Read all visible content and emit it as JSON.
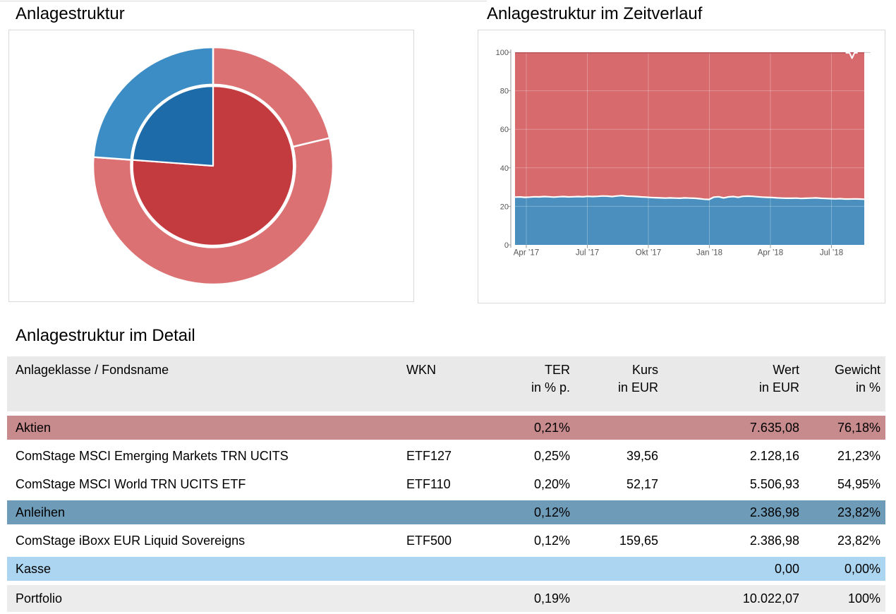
{
  "page": {
    "left_chart_title": "Anlagestruktur",
    "right_chart_title": "Anlagestruktur im Zeitverlauf",
    "table_title": "Anlagestruktur im Detail"
  },
  "chart_data": [
    {
      "id": "anlagestruktur-donut",
      "type": "pie",
      "title": "Anlagestruktur",
      "variant": "two-ring sunburst, starts at 12 o'clock, clockwise, white slice borders",
      "inner_ring": [
        {
          "label": "Aktien",
          "value": 76.18,
          "color": "#c33b3f"
        },
        {
          "label": "Anleihen",
          "value": 23.82,
          "color": "#1e6ba9"
        }
      ],
      "outer_ring": [
        {
          "label": "ComStage MSCI Emerging Markets TRN UCITS",
          "value": 21.23,
          "color": "#dc7174"
        },
        {
          "label": "ComStage MSCI World TRN UCITS ETF",
          "value": 54.95,
          "color": "#dc7174"
        },
        {
          "label": "ComStage iBoxx EUR Liquid Sovereigns",
          "value": 23.82,
          "color": "#3c8dc5"
        }
      ]
    },
    {
      "id": "anlagestruktur-zeitverlauf",
      "type": "area",
      "title": "Anlagestruktur im Zeitverlauf",
      "stacked_percent": true,
      "ylim": [
        0,
        100
      ],
      "y_ticks": [
        0,
        20,
        40,
        60,
        80,
        100
      ],
      "x_tick_labels": [
        "Apr ’17",
        "Jul ’17",
        "Okt ’17",
        "Jan ’18",
        "Apr ’18",
        "Jul ’18"
      ],
      "grid": true,
      "legend": "none",
      "series": [
        {
          "name": "Anleihen",
          "color": "#4a8fbe",
          "values": [
            24.8,
            24.9,
            24.7,
            24.8,
            25.0,
            24.9,
            25.1,
            25.0,
            24.8,
            25.0,
            25.1,
            24.9,
            25.0,
            25.1,
            25.0,
            25.2,
            25.1,
            25.2,
            25.4,
            25.3,
            25.1,
            25.4,
            25.6,
            25.3,
            25.2,
            25.1,
            24.9,
            24.8,
            24.6,
            24.5,
            24.4,
            24.3,
            24.4,
            24.3,
            24.2,
            24.4,
            24.3,
            24.2,
            24.0,
            23.7,
            23.6,
            24.8,
            25.0,
            24.4,
            24.9,
            25.1,
            24.7,
            25.2,
            25.3,
            25.2,
            25.0,
            24.8,
            24.7,
            24.6,
            24.4,
            24.3,
            24.2,
            24.2,
            24.3,
            24.1,
            24.2,
            24.3,
            24.4,
            24.2,
            24.1,
            24.0,
            23.9,
            24.0,
            23.8,
            23.8,
            23.9,
            23.8,
            23.7
          ]
        }
      ],
      "remainder_series": {
        "name": "Aktien",
        "color": "#d66a6d",
        "note": "fills up to 100%"
      },
      "boundary_line_color": "#ffffff",
      "top_edge_dip": {
        "position_frac": 0.965,
        "depth_pct": 2.8
      }
    }
  ],
  "table": {
    "columns": [
      {
        "label": "Anlageklasse / Fondsname",
        "sub": "",
        "align": "left"
      },
      {
        "label": "WKN",
        "sub": "",
        "align": "left"
      },
      {
        "label": "TER",
        "sub": "in % p.",
        "align": "right"
      },
      {
        "label": "Kurs",
        "sub": "in EUR",
        "align": "right"
      },
      {
        "label": "Wert",
        "sub": "in EUR",
        "align": "right"
      },
      {
        "label": "Gewicht",
        "sub": "in %",
        "align": "right"
      }
    ],
    "rows": [
      {
        "style": "aktien",
        "name": "Aktien",
        "wkn": "",
        "ter": "0,21%",
        "kurs": "",
        "wert": "7.635,08",
        "gewicht": "76,18%"
      },
      {
        "style": "fund",
        "name": "ComStage MSCI Emerging Markets TRN UCITS",
        "wkn": "ETF127",
        "ter": "0,25%",
        "kurs": "39,56",
        "wert": "2.128,16",
        "gewicht": "21,23%"
      },
      {
        "style": "fund",
        "name": "ComStage MSCI World TRN UCITS ETF",
        "wkn": "ETF110",
        "ter": "0,20%",
        "kurs": "52,17",
        "wert": "5.506,93",
        "gewicht": "54,95%"
      },
      {
        "style": "anleihen",
        "name": "Anleihen",
        "wkn": "",
        "ter": "0,12%",
        "kurs": "",
        "wert": "2.386,98",
        "gewicht": "23,82%"
      },
      {
        "style": "fund",
        "name": "ComStage iBoxx EUR Liquid Sovereigns",
        "wkn": "ETF500",
        "ter": "0,12%",
        "kurs": "159,65",
        "wert": "2.386,98",
        "gewicht": "23,82%"
      },
      {
        "style": "kasse",
        "name": "Kasse",
        "wkn": "",
        "ter": "",
        "kurs": "",
        "wert": "0,00",
        "gewicht": "0,00%"
      },
      {
        "style": "portfolio",
        "name": "Portfolio",
        "wkn": "",
        "ter": "0,19%",
        "kurs": "",
        "wert": "10.022,07",
        "gewicht": "100%"
      }
    ]
  },
  "styles": {
    "row_colors": {
      "header": "#e9e9e9",
      "aktien": "#c78a8d",
      "anleihen": "#6e9cb8",
      "kasse": "#abd5f0",
      "portfolio": "#ececec",
      "fund": "#ffffff"
    },
    "axis_text_color": "#555555",
    "grid_color": "rgba(255,255,255,0.28)",
    "panel_border_color": "#d9d9d9"
  }
}
